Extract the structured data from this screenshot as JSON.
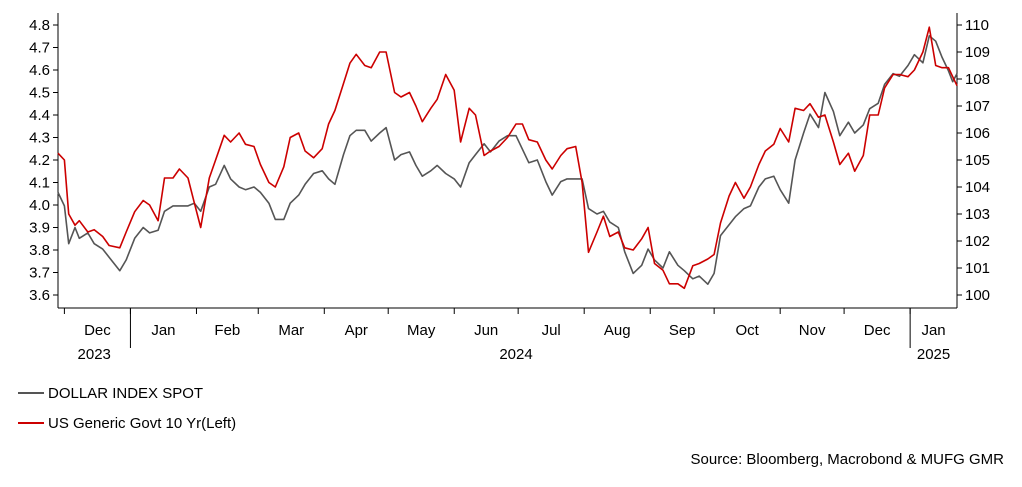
{
  "chart_data": {
    "type": "line",
    "title": "",
    "source": "Source: Bloomberg, Macrobond & MUFG GMR",
    "x_axis": {
      "range": [
        "2023-11-28",
        "2025-01-23"
      ],
      "month_labels": [
        "Dec",
        "Jan",
        "Feb",
        "Mar",
        "Apr",
        "May",
        "Jun",
        "Jul",
        "Aug",
        "Sep",
        "Oct",
        "Nov",
        "Dec",
        "Jan"
      ],
      "month_starts": [
        "2023-12-01",
        "2024-01-01",
        "2024-02-01",
        "2024-03-01",
        "2024-04-01",
        "2024-05-01",
        "2024-06-01",
        "2024-07-01",
        "2024-08-01",
        "2024-09-01",
        "2024-10-01",
        "2024-11-01",
        "2024-12-01",
        "2025-01-01"
      ],
      "year_labels": [
        {
          "text": "2023",
          "date": "2023-12-15"
        },
        {
          "text": "2024",
          "date": "2024-06-30"
        },
        {
          "text": "2025",
          "date": "2025-01-12"
        }
      ]
    },
    "y_left": {
      "min": 3.6,
      "max": 4.8,
      "ticks": [
        "3.6",
        "3.7",
        "3.8",
        "3.9",
        "4.0",
        "4.1",
        "4.2",
        "4.3",
        "4.4",
        "4.5",
        "4.6",
        "4.7",
        "4.8"
      ]
    },
    "y_right": {
      "min": 100,
      "max": 110,
      "ticks": [
        "100",
        "101",
        "102",
        "103",
        "104",
        "105",
        "106",
        "107",
        "108",
        "109",
        "110"
      ]
    },
    "series": [
      {
        "name": "DOLLAR INDEX SPOT",
        "axis": "right",
        "color": "#555555",
        "points": [
          [
            "2023-11-28",
            103.8
          ],
          [
            "2023-12-01",
            103.3
          ],
          [
            "2023-12-03",
            101.9
          ],
          [
            "2023-12-06",
            102.5
          ],
          [
            "2023-12-08",
            102.1
          ],
          [
            "2023-12-12",
            102.3
          ],
          [
            "2023-12-15",
            101.9
          ],
          [
            "2023-12-19",
            101.7
          ],
          [
            "2023-12-22",
            101.4
          ],
          [
            "2023-12-27",
            100.9
          ],
          [
            "2023-12-30",
            101.3
          ],
          [
            "2024-01-03",
            102.1
          ],
          [
            "2024-01-07",
            102.5
          ],
          [
            "2024-01-10",
            102.3
          ],
          [
            "2024-01-14",
            102.4
          ],
          [
            "2024-01-17",
            103.1
          ],
          [
            "2024-01-21",
            103.3
          ],
          [
            "2024-01-24",
            103.3
          ],
          [
            "2024-01-28",
            103.3
          ],
          [
            "2024-01-31",
            103.4
          ],
          [
            "2024-02-03",
            103.1
          ],
          [
            "2024-02-07",
            104.0
          ],
          [
            "2024-02-10",
            104.1
          ],
          [
            "2024-02-14",
            104.8
          ],
          [
            "2024-02-17",
            104.3
          ],
          [
            "2024-02-21",
            104.0
          ],
          [
            "2024-02-24",
            103.9
          ],
          [
            "2024-02-28",
            104.0
          ],
          [
            "2024-03-02",
            103.8
          ],
          [
            "2024-03-06",
            103.4
          ],
          [
            "2024-03-09",
            102.8
          ],
          [
            "2024-03-13",
            102.8
          ],
          [
            "2024-03-16",
            103.4
          ],
          [
            "2024-03-20",
            103.7
          ],
          [
            "2024-03-23",
            104.1
          ],
          [
            "2024-03-27",
            104.5
          ],
          [
            "2024-03-31",
            104.6
          ],
          [
            "2024-04-03",
            104.3
          ],
          [
            "2024-04-06",
            104.1
          ],
          [
            "2024-04-10",
            105.2
          ],
          [
            "2024-04-13",
            105.9
          ],
          [
            "2024-04-16",
            106.1
          ],
          [
            "2024-04-20",
            106.1
          ],
          [
            "2024-04-23",
            105.7
          ],
          [
            "2024-04-27",
            106.0
          ],
          [
            "2024-04-30",
            106.2
          ],
          [
            "2024-05-04",
            105.0
          ],
          [
            "2024-05-07",
            105.2
          ],
          [
            "2024-05-11",
            105.3
          ],
          [
            "2024-05-14",
            104.8
          ],
          [
            "2024-05-17",
            104.4
          ],
          [
            "2024-05-21",
            104.6
          ],
          [
            "2024-05-24",
            104.8
          ],
          [
            "2024-05-28",
            104.5
          ],
          [
            "2024-06-01",
            104.3
          ],
          [
            "2024-06-04",
            104.0
          ],
          [
            "2024-06-08",
            104.9
          ],
          [
            "2024-06-11",
            105.2
          ],
          [
            "2024-06-15",
            105.6
          ],
          [
            "2024-06-18",
            105.3
          ],
          [
            "2024-06-22",
            105.7
          ],
          [
            "2024-06-26",
            105.9
          ],
          [
            "2024-06-30",
            105.9
          ],
          [
            "2024-07-03",
            105.4
          ],
          [
            "2024-07-06",
            104.9
          ],
          [
            "2024-07-10",
            105.0
          ],
          [
            "2024-07-14",
            104.2
          ],
          [
            "2024-07-17",
            103.7
          ],
          [
            "2024-07-21",
            104.2
          ],
          [
            "2024-07-24",
            104.3
          ],
          [
            "2024-07-28",
            104.3
          ],
          [
            "2024-07-31",
            104.3
          ],
          [
            "2024-08-03",
            103.2
          ],
          [
            "2024-08-07",
            103.0
          ],
          [
            "2024-08-10",
            103.1
          ],
          [
            "2024-08-13",
            102.7
          ],
          [
            "2024-08-17",
            102.5
          ],
          [
            "2024-08-20",
            101.6
          ],
          [
            "2024-08-24",
            100.8
          ],
          [
            "2024-08-28",
            101.1
          ],
          [
            "2024-08-31",
            101.7
          ],
          [
            "2024-09-03",
            101.3
          ],
          [
            "2024-09-07",
            101.0
          ],
          [
            "2024-09-10",
            101.6
          ],
          [
            "2024-09-14",
            101.1
          ],
          [
            "2024-09-17",
            100.9
          ],
          [
            "2024-09-21",
            100.6
          ],
          [
            "2024-09-24",
            100.7
          ],
          [
            "2024-09-28",
            100.4
          ],
          [
            "2024-10-01",
            100.8
          ],
          [
            "2024-10-04",
            102.2
          ],
          [
            "2024-10-08",
            102.6
          ],
          [
            "2024-10-11",
            102.9
          ],
          [
            "2024-10-15",
            103.2
          ],
          [
            "2024-10-18",
            103.3
          ],
          [
            "2024-10-22",
            104.0
          ],
          [
            "2024-10-25",
            104.3
          ],
          [
            "2024-10-29",
            104.4
          ],
          [
            "2024-11-01",
            103.9
          ],
          [
            "2024-11-05",
            103.4
          ],
          [
            "2024-11-08",
            105.0
          ],
          [
            "2024-11-12",
            106.0
          ],
          [
            "2024-11-15",
            106.7
          ],
          [
            "2024-11-19",
            106.2
          ],
          [
            "2024-11-22",
            107.5
          ],
          [
            "2024-11-26",
            106.8
          ],
          [
            "2024-11-29",
            105.9
          ],
          [
            "2024-12-03",
            106.4
          ],
          [
            "2024-12-06",
            106.0
          ],
          [
            "2024-12-10",
            106.3
          ],
          [
            "2024-12-13",
            106.9
          ],
          [
            "2024-12-17",
            107.1
          ],
          [
            "2024-12-20",
            107.8
          ],
          [
            "2024-12-24",
            108.2
          ],
          [
            "2024-12-27",
            108.1
          ],
          [
            "2024-12-31",
            108.5
          ],
          [
            "2025-01-03",
            108.9
          ],
          [
            "2025-01-07",
            108.6
          ],
          [
            "2025-01-10",
            109.6
          ],
          [
            "2025-01-13",
            109.4
          ],
          [
            "2025-01-16",
            108.8
          ],
          [
            "2025-01-19",
            108.3
          ],
          [
            "2025-01-21",
            107.9
          ],
          [
            "2025-01-23",
            108.2
          ]
        ]
      },
      {
        "name": "US Generic Govt 10 Yr(Left)",
        "axis": "left",
        "color": "#cc0000",
        "points": [
          [
            "2023-11-28",
            4.23
          ],
          [
            "2023-12-01",
            4.2
          ],
          [
            "2023-12-03",
            3.96
          ],
          [
            "2023-12-06",
            3.91
          ],
          [
            "2023-12-08",
            3.93
          ],
          [
            "2023-12-12",
            3.88
          ],
          [
            "2023-12-15",
            3.89
          ],
          [
            "2023-12-19",
            3.86
          ],
          [
            "2023-12-22",
            3.82
          ],
          [
            "2023-12-27",
            3.81
          ],
          [
            "2023-12-30",
            3.88
          ],
          [
            "2024-01-03",
            3.97
          ],
          [
            "2024-01-07",
            4.02
          ],
          [
            "2024-01-10",
            4.0
          ],
          [
            "2024-01-14",
            3.93
          ],
          [
            "2024-01-17",
            4.12
          ],
          [
            "2024-01-21",
            4.12
          ],
          [
            "2024-01-24",
            4.16
          ],
          [
            "2024-01-28",
            4.12
          ],
          [
            "2024-01-31",
            4.01
          ],
          [
            "2024-02-03",
            3.9
          ],
          [
            "2024-02-07",
            4.12
          ],
          [
            "2024-02-10",
            4.2
          ],
          [
            "2024-02-14",
            4.31
          ],
          [
            "2024-02-17",
            4.28
          ],
          [
            "2024-02-21",
            4.32
          ],
          [
            "2024-02-24",
            4.27
          ],
          [
            "2024-02-28",
            4.26
          ],
          [
            "2024-03-02",
            4.18
          ],
          [
            "2024-03-06",
            4.1
          ],
          [
            "2024-03-09",
            4.08
          ],
          [
            "2024-03-13",
            4.17
          ],
          [
            "2024-03-16",
            4.3
          ],
          [
            "2024-03-20",
            4.32
          ],
          [
            "2024-03-23",
            4.24
          ],
          [
            "2024-03-27",
            4.21
          ],
          [
            "2024-03-31",
            4.25
          ],
          [
            "2024-04-03",
            4.36
          ],
          [
            "2024-04-06",
            4.42
          ],
          [
            "2024-04-10",
            4.54
          ],
          [
            "2024-04-13",
            4.63
          ],
          [
            "2024-04-16",
            4.67
          ],
          [
            "2024-04-20",
            4.62
          ],
          [
            "2024-04-23",
            4.61
          ],
          [
            "2024-04-27",
            4.68
          ],
          [
            "2024-04-30",
            4.68
          ],
          [
            "2024-05-04",
            4.5
          ],
          [
            "2024-05-07",
            4.48
          ],
          [
            "2024-05-11",
            4.5
          ],
          [
            "2024-05-14",
            4.44
          ],
          [
            "2024-05-17",
            4.37
          ],
          [
            "2024-05-21",
            4.43
          ],
          [
            "2024-05-24",
            4.47
          ],
          [
            "2024-05-28",
            4.58
          ],
          [
            "2024-06-01",
            4.51
          ],
          [
            "2024-06-04",
            4.28
          ],
          [
            "2024-06-08",
            4.43
          ],
          [
            "2024-06-11",
            4.4
          ],
          [
            "2024-06-15",
            4.22
          ],
          [
            "2024-06-18",
            4.24
          ],
          [
            "2024-06-22",
            4.26
          ],
          [
            "2024-06-26",
            4.3
          ],
          [
            "2024-06-30",
            4.36
          ],
          [
            "2024-07-03",
            4.36
          ],
          [
            "2024-07-06",
            4.29
          ],
          [
            "2024-07-10",
            4.28
          ],
          [
            "2024-07-14",
            4.2
          ],
          [
            "2024-07-17",
            4.16
          ],
          [
            "2024-07-21",
            4.22
          ],
          [
            "2024-07-24",
            4.25
          ],
          [
            "2024-07-28",
            4.26
          ],
          [
            "2024-07-31",
            4.1
          ],
          [
            "2024-08-03",
            3.79
          ],
          [
            "2024-08-07",
            3.88
          ],
          [
            "2024-08-10",
            3.95
          ],
          [
            "2024-08-13",
            3.86
          ],
          [
            "2024-08-17",
            3.88
          ],
          [
            "2024-08-20",
            3.81
          ],
          [
            "2024-08-24",
            3.8
          ],
          [
            "2024-08-28",
            3.85
          ],
          [
            "2024-08-31",
            3.9
          ],
          [
            "2024-09-03",
            3.74
          ],
          [
            "2024-09-07",
            3.71
          ],
          [
            "2024-09-10",
            3.65
          ],
          [
            "2024-09-14",
            3.65
          ],
          [
            "2024-09-17",
            3.63
          ],
          [
            "2024-09-21",
            3.73
          ],
          [
            "2024-09-24",
            3.74
          ],
          [
            "2024-09-28",
            3.76
          ],
          [
            "2024-10-01",
            3.78
          ],
          [
            "2024-10-04",
            3.92
          ],
          [
            "2024-10-08",
            4.04
          ],
          [
            "2024-10-11",
            4.1
          ],
          [
            "2024-10-15",
            4.03
          ],
          [
            "2024-10-18",
            4.08
          ],
          [
            "2024-10-22",
            4.18
          ],
          [
            "2024-10-25",
            4.24
          ],
          [
            "2024-10-29",
            4.27
          ],
          [
            "2024-11-01",
            4.34
          ],
          [
            "2024-11-05",
            4.28
          ],
          [
            "2024-11-08",
            4.43
          ],
          [
            "2024-11-12",
            4.42
          ],
          [
            "2024-11-15",
            4.45
          ],
          [
            "2024-11-19",
            4.39
          ],
          [
            "2024-11-22",
            4.4
          ],
          [
            "2024-11-26",
            4.28
          ],
          [
            "2024-11-29",
            4.18
          ],
          [
            "2024-12-03",
            4.23
          ],
          [
            "2024-12-06",
            4.15
          ],
          [
            "2024-12-10",
            4.22
          ],
          [
            "2024-12-13",
            4.4
          ],
          [
            "2024-12-17",
            4.4
          ],
          [
            "2024-12-20",
            4.52
          ],
          [
            "2024-12-24",
            4.58
          ],
          [
            "2024-12-27",
            4.58
          ],
          [
            "2024-12-31",
            4.57
          ],
          [
            "2025-01-03",
            4.6
          ],
          [
            "2025-01-07",
            4.68
          ],
          [
            "2025-01-10",
            4.79
          ],
          [
            "2025-01-13",
            4.62
          ],
          [
            "2025-01-16",
            4.61
          ],
          [
            "2025-01-19",
            4.61
          ],
          [
            "2025-01-21",
            4.57
          ],
          [
            "2025-01-23",
            4.53
          ]
        ]
      }
    ]
  }
}
